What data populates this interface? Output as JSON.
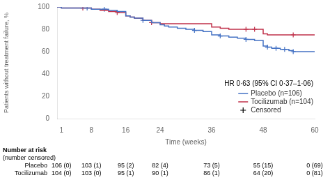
{
  "chart_data": {
    "type": "line",
    "xlabel": "Time (weeks)",
    "ylabel": "Patients without treatment failure, %",
    "xlim": [
      0,
      60
    ],
    "ylim": [
      0,
      100
    ],
    "xticks": [
      1,
      8,
      16,
      24,
      36,
      48,
      60
    ],
    "yticks": [
      0,
      20,
      40,
      60,
      80,
      100
    ],
    "grid": false,
    "legend": "lower right",
    "series": [
      {
        "name": "Placebo (n=106)",
        "color": "#4472C4",
        "line_style": "steps",
        "x": [
          0,
          1,
          7,
          8,
          11,
          12,
          14,
          16,
          17,
          18,
          20,
          22,
          24,
          25,
          26,
          28,
          30,
          32,
          34,
          36,
          38,
          40,
          42,
          44,
          46,
          48,
          49,
          50,
          51,
          52,
          53,
          54,
          55,
          60
        ],
        "values": [
          100,
          99,
          99,
          98,
          98,
          97,
          96,
          92,
          91,
          90,
          88,
          86,
          84,
          83,
          82,
          81,
          80,
          79,
          78,
          75,
          74,
          73,
          72,
          71,
          70,
          65,
          64,
          63,
          63,
          62,
          62,
          61,
          60,
          60
        ]
      },
      {
        "name": "Tocilizumab (n=104)",
        "color": "#C0304A",
        "line_style": "steps",
        "x": [
          0,
          1,
          6,
          8,
          10,
          12,
          14,
          16,
          17,
          18,
          20,
          22,
          24,
          36,
          38,
          40,
          44,
          46,
          48,
          49,
          55,
          60
        ],
        "values": [
          100,
          99,
          99,
          98,
          97,
          96,
          95,
          92,
          91,
          90,
          88,
          86,
          85,
          82,
          81,
          80,
          80,
          80,
          76,
          75,
          75,
          75
        ]
      },
      {
        "name": "Censored",
        "type": "scatter",
        "marker": "+",
        "x": [
          7,
          11,
          20,
          32,
          38,
          44,
          49,
          51,
          53,
          55,
          6,
          14,
          22,
          44,
          46,
          55
        ],
        "values": [
          99,
          98,
          88,
          79,
          74,
          71,
          64,
          63,
          62,
          60,
          99,
          95,
          86,
          80,
          80,
          75
        ],
        "colors": [
          "#4472C4",
          "#4472C4",
          "#4472C4",
          "#4472C4",
          "#4472C4",
          "#4472C4",
          "#4472C4",
          "#4472C4",
          "#4472C4",
          "#4472C4",
          "#C0304A",
          "#C0304A",
          "#C0304A",
          "#C0304A",
          "#C0304A",
          "#C0304A"
        ]
      }
    ],
    "annotations": [
      {
        "text": "HR 0·63 (95% CI 0·37–1·06)"
      }
    ],
    "risk_table": {
      "title": "Number at risk",
      "subtitle": "(number censored)",
      "x": [
        1,
        8,
        16,
        24,
        36,
        48,
        60
      ],
      "rows": [
        {
          "name": "Placebo",
          "values": [
            "106 (0)",
            "103 (1)",
            "95 (2)",
            "82 (4)",
            "73 (5)",
            "55 (15)",
            "0 (69)"
          ]
        },
        {
          "name": "Tocilizumab",
          "values": [
            "104 (0)",
            "103 (0)",
            "95 (1)",
            "90 (1)",
            "86 (1)",
            "64 (20)",
            "0 (81)"
          ]
        }
      ]
    }
  }
}
